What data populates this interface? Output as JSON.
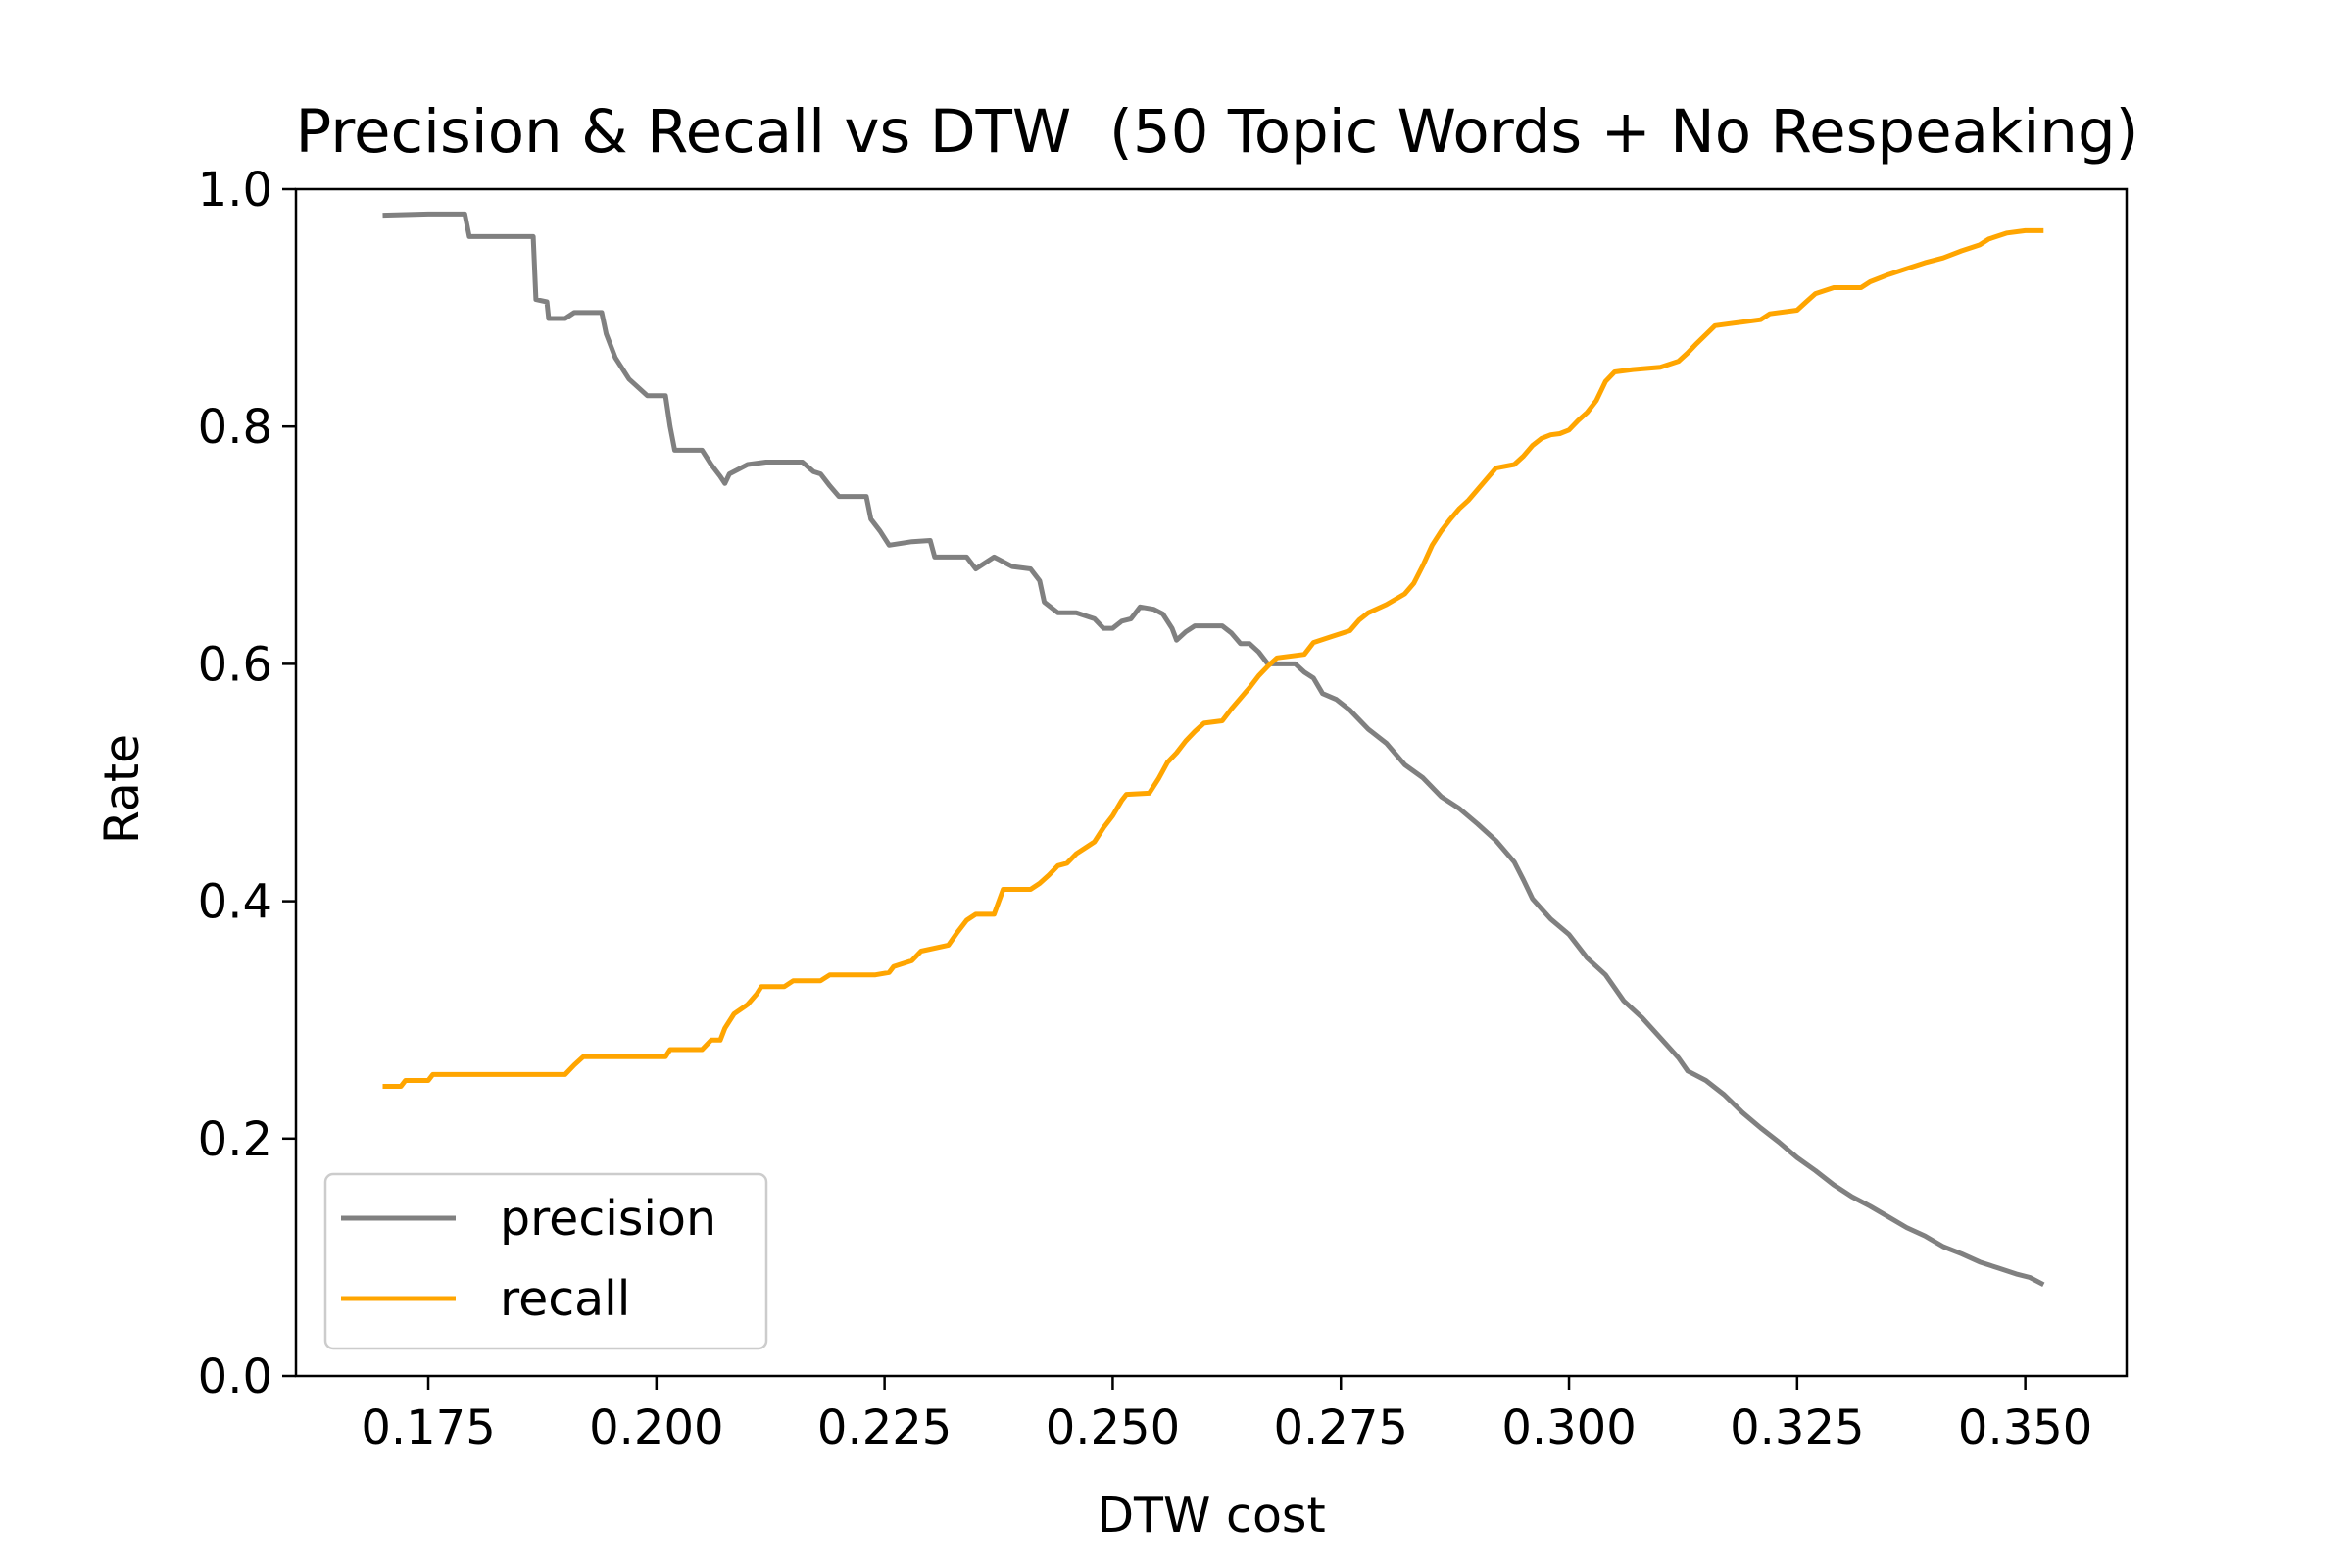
{
  "chart_data": {
    "type": "line",
    "title": "Precision & Recall vs DTW  (50 Topic Words + No Respeaking)",
    "xlabel": "DTW cost",
    "ylabel": "Rate",
    "xlim": [
      0.1605,
      0.3611
    ],
    "ylim": [
      0.0,
      1.0
    ],
    "x_ticks": [
      0.175,
      0.2,
      0.225,
      0.25,
      0.275,
      0.3,
      0.325,
      0.35
    ],
    "x_tick_labels": [
      "0.175",
      "0.200",
      "0.225",
      "0.250",
      "0.275",
      "0.300",
      "0.325",
      "0.350"
    ],
    "y_ticks": [
      0.0,
      0.2,
      0.4,
      0.6,
      0.8,
      1.0
    ],
    "y_tick_labels": [
      "0.0",
      "0.2",
      "0.4",
      "0.6",
      "0.8",
      "1.0"
    ],
    "grid": false,
    "legend_position": "lower-left",
    "series": [
      {
        "name": "precision",
        "color": "#808080",
        "points": [
          [
            0.17,
            0.978
          ],
          [
            0.175,
            0.979
          ],
          [
            0.179,
            0.979
          ],
          [
            0.1795,
            0.96
          ],
          [
            0.182,
            0.96
          ],
          [
            0.1865,
            0.96
          ],
          [
            0.1868,
            0.907
          ],
          [
            0.188,
            0.905
          ],
          [
            0.1882,
            0.891
          ],
          [
            0.19,
            0.891
          ],
          [
            0.191,
            0.896
          ],
          [
            0.194,
            0.896
          ],
          [
            0.1945,
            0.878
          ],
          [
            0.1955,
            0.858
          ],
          [
            0.197,
            0.84
          ],
          [
            0.199,
            0.826
          ],
          [
            0.201,
            0.826
          ],
          [
            0.2015,
            0.8
          ],
          [
            0.202,
            0.78
          ],
          [
            0.205,
            0.78
          ],
          [
            0.206,
            0.768
          ],
          [
            0.207,
            0.758
          ],
          [
            0.2075,
            0.752
          ],
          [
            0.208,
            0.76
          ],
          [
            0.21,
            0.768
          ],
          [
            0.212,
            0.77
          ],
          [
            0.216,
            0.77
          ],
          [
            0.2172,
            0.762
          ],
          [
            0.218,
            0.76
          ],
          [
            0.219,
            0.75
          ],
          [
            0.22,
            0.741
          ],
          [
            0.223,
            0.741
          ],
          [
            0.2235,
            0.722
          ],
          [
            0.2245,
            0.712
          ],
          [
            0.2255,
            0.7
          ],
          [
            0.228,
            0.703
          ],
          [
            0.23,
            0.704
          ],
          [
            0.2305,
            0.69
          ],
          [
            0.234,
            0.69
          ],
          [
            0.235,
            0.68
          ],
          [
            0.237,
            0.69
          ],
          [
            0.239,
            0.682
          ],
          [
            0.241,
            0.68
          ],
          [
            0.242,
            0.67
          ],
          [
            0.2425,
            0.652
          ],
          [
            0.244,
            0.643
          ],
          [
            0.246,
            0.643
          ],
          [
            0.248,
            0.638
          ],
          [
            0.249,
            0.63
          ],
          [
            0.25,
            0.63
          ],
          [
            0.251,
            0.636
          ],
          [
            0.252,
            0.638
          ],
          [
            0.253,
            0.648
          ],
          [
            0.2545,
            0.646
          ],
          [
            0.2555,
            0.642
          ],
          [
            0.2565,
            0.63
          ],
          [
            0.257,
            0.62
          ],
          [
            0.258,
            0.627
          ],
          [
            0.259,
            0.632
          ],
          [
            0.262,
            0.632
          ],
          [
            0.263,
            0.626
          ],
          [
            0.264,
            0.617
          ],
          [
            0.265,
            0.617
          ],
          [
            0.266,
            0.61
          ],
          [
            0.267,
            0.6
          ],
          [
            0.27,
            0.6
          ],
          [
            0.271,
            0.593
          ],
          [
            0.272,
            0.588
          ],
          [
            0.273,
            0.575
          ],
          [
            0.2745,
            0.57
          ],
          [
            0.276,
            0.561
          ],
          [
            0.278,
            0.545
          ],
          [
            0.28,
            0.533
          ],
          [
            0.282,
            0.515
          ],
          [
            0.284,
            0.504
          ],
          [
            0.286,
            0.488
          ],
          [
            0.288,
            0.478
          ],
          [
            0.29,
            0.465
          ],
          [
            0.292,
            0.451
          ],
          [
            0.294,
            0.433
          ],
          [
            0.295,
            0.418
          ],
          [
            0.296,
            0.402
          ],
          [
            0.298,
            0.385
          ],
          [
            0.3,
            0.372
          ],
          [
            0.302,
            0.352
          ],
          [
            0.304,
            0.338
          ],
          [
            0.306,
            0.316
          ],
          [
            0.308,
            0.302
          ],
          [
            0.31,
            0.285
          ],
          [
            0.312,
            0.268
          ],
          [
            0.313,
            0.257
          ],
          [
            0.315,
            0.249
          ],
          [
            0.317,
            0.237
          ],
          [
            0.319,
            0.222
          ],
          [
            0.321,
            0.209
          ],
          [
            0.323,
            0.197
          ],
          [
            0.325,
            0.184
          ],
          [
            0.327,
            0.173
          ],
          [
            0.329,
            0.161
          ],
          [
            0.331,
            0.151
          ],
          [
            0.333,
            0.143
          ],
          [
            0.335,
            0.134
          ],
          [
            0.337,
            0.125
          ],
          [
            0.339,
            0.118
          ],
          [
            0.341,
            0.109
          ],
          [
            0.343,
            0.103
          ],
          [
            0.345,
            0.096
          ],
          [
            0.347,
            0.091
          ],
          [
            0.349,
            0.086
          ],
          [
            0.3505,
            0.083
          ],
          [
            0.352,
            0.077
          ]
        ]
      },
      {
        "name": "recall",
        "color": "#FFA500",
        "points": [
          [
            0.17,
            0.244
          ],
          [
            0.172,
            0.244
          ],
          [
            0.1725,
            0.249
          ],
          [
            0.175,
            0.249
          ],
          [
            0.1755,
            0.254
          ],
          [
            0.18,
            0.254
          ],
          [
            0.19,
            0.254
          ],
          [
            0.191,
            0.262
          ],
          [
            0.192,
            0.269
          ],
          [
            0.195,
            0.269
          ],
          [
            0.201,
            0.269
          ],
          [
            0.2015,
            0.275
          ],
          [
            0.205,
            0.275
          ],
          [
            0.206,
            0.283
          ],
          [
            0.207,
            0.283
          ],
          [
            0.2075,
            0.293
          ],
          [
            0.2085,
            0.305
          ],
          [
            0.21,
            0.313
          ],
          [
            0.211,
            0.322
          ],
          [
            0.2115,
            0.328
          ],
          [
            0.214,
            0.328
          ],
          [
            0.215,
            0.333
          ],
          [
            0.218,
            0.333
          ],
          [
            0.219,
            0.338
          ],
          [
            0.224,
            0.338
          ],
          [
            0.2255,
            0.34
          ],
          [
            0.226,
            0.345
          ],
          [
            0.228,
            0.35
          ],
          [
            0.229,
            0.358
          ],
          [
            0.232,
            0.363
          ],
          [
            0.233,
            0.374
          ],
          [
            0.234,
            0.384
          ],
          [
            0.235,
            0.389
          ],
          [
            0.237,
            0.389
          ],
          [
            0.238,
            0.41
          ],
          [
            0.241,
            0.41
          ],
          [
            0.242,
            0.415
          ],
          [
            0.243,
            0.422
          ],
          [
            0.244,
            0.43
          ],
          [
            0.245,
            0.432
          ],
          [
            0.246,
            0.44
          ],
          [
            0.247,
            0.445
          ],
          [
            0.248,
            0.45
          ],
          [
            0.249,
            0.462
          ],
          [
            0.25,
            0.472
          ],
          [
            0.251,
            0.485
          ],
          [
            0.2515,
            0.49
          ],
          [
            0.254,
            0.491
          ],
          [
            0.255,
            0.503
          ],
          [
            0.256,
            0.517
          ],
          [
            0.257,
            0.525
          ],
          [
            0.258,
            0.535
          ],
          [
            0.259,
            0.543
          ],
          [
            0.26,
            0.55
          ],
          [
            0.262,
            0.552
          ],
          [
            0.263,
            0.562
          ],
          [
            0.264,
            0.571
          ],
          [
            0.265,
            0.58
          ],
          [
            0.266,
            0.59
          ],
          [
            0.267,
            0.598
          ],
          [
            0.268,
            0.605
          ],
          [
            0.271,
            0.608
          ],
          [
            0.272,
            0.618
          ],
          [
            0.274,
            0.623
          ],
          [
            0.276,
            0.628
          ],
          [
            0.277,
            0.637
          ],
          [
            0.278,
            0.643
          ],
          [
            0.28,
            0.65
          ],
          [
            0.282,
            0.659
          ],
          [
            0.283,
            0.668
          ],
          [
            0.284,
            0.683
          ],
          [
            0.285,
            0.7
          ],
          [
            0.286,
            0.712
          ],
          [
            0.287,
            0.722
          ],
          [
            0.288,
            0.731
          ],
          [
            0.289,
            0.738
          ],
          [
            0.29,
            0.747
          ],
          [
            0.291,
            0.756
          ],
          [
            0.292,
            0.765
          ],
          [
            0.294,
            0.768
          ],
          [
            0.295,
            0.775
          ],
          [
            0.296,
            0.784
          ],
          [
            0.297,
            0.79
          ],
          [
            0.298,
            0.793
          ],
          [
            0.299,
            0.794
          ],
          [
            0.3,
            0.797
          ],
          [
            0.301,
            0.805
          ],
          [
            0.302,
            0.812
          ],
          [
            0.303,
            0.822
          ],
          [
            0.304,
            0.838
          ],
          [
            0.305,
            0.846
          ],
          [
            0.307,
            0.848
          ],
          [
            0.31,
            0.85
          ],
          [
            0.312,
            0.855
          ],
          [
            0.313,
            0.862
          ],
          [
            0.314,
            0.87
          ],
          [
            0.316,
            0.885
          ],
          [
            0.318,
            0.887
          ],
          [
            0.321,
            0.89
          ],
          [
            0.322,
            0.895
          ],
          [
            0.325,
            0.898
          ],
          [
            0.326,
            0.905
          ],
          [
            0.327,
            0.912
          ],
          [
            0.329,
            0.917
          ],
          [
            0.332,
            0.917
          ],
          [
            0.333,
            0.922
          ],
          [
            0.335,
            0.928
          ],
          [
            0.337,
            0.933
          ],
          [
            0.339,
            0.938
          ],
          [
            0.341,
            0.942
          ],
          [
            0.343,
            0.948
          ],
          [
            0.345,
            0.953
          ],
          [
            0.346,
            0.958
          ],
          [
            0.348,
            0.963
          ],
          [
            0.35,
            0.965
          ],
          [
            0.352,
            0.965
          ]
        ]
      }
    ]
  }
}
